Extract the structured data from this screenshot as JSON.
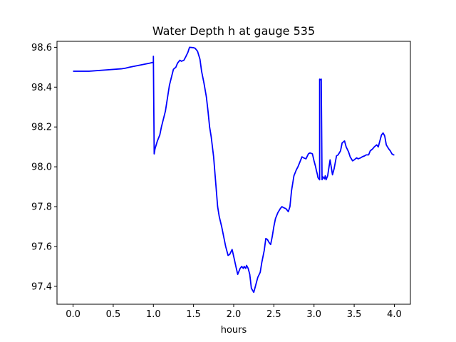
{
  "chart_data": {
    "type": "line",
    "title": "Water Depth h at gauge 535",
    "xlabel": "hours",
    "ylabel": "",
    "xlim": [
      -0.2,
      4.2
    ],
    "ylim": [
      97.31,
      98.63
    ],
    "xticks": [
      0.0,
      0.5,
      1.0,
      1.5,
      2.0,
      2.5,
      3.0,
      3.5,
      4.0
    ],
    "xtick_labels": [
      "0.0",
      "0.5",
      "1.0",
      "1.5",
      "2.0",
      "2.5",
      "3.0",
      "3.5",
      "4.0"
    ],
    "yticks": [
      97.4,
      97.6,
      97.8,
      98.0,
      98.2,
      98.4,
      98.6
    ],
    "ytick_labels": [
      "97.4",
      "97.6",
      "97.8",
      "98.0",
      "98.2",
      "98.4",
      "98.6"
    ],
    "grid": false,
    "series": [
      {
        "color": "#0000ff",
        "x": [
          0.0,
          0.2,
          0.4,
          0.6,
          0.65,
          0.7,
          0.8,
          0.9,
          0.95,
          1.0,
          1.0,
          1.01,
          1.02,
          1.05,
          1.08,
          1.1,
          1.15,
          1.2,
          1.25,
          1.28,
          1.3,
          1.33,
          1.35,
          1.38,
          1.4,
          1.43,
          1.45,
          1.5,
          1.52,
          1.55,
          1.58,
          1.6,
          1.63,
          1.66,
          1.68,
          1.7,
          1.72,
          1.75,
          1.78,
          1.8,
          1.82,
          1.85,
          1.88,
          1.9,
          1.93,
          1.95,
          1.98,
          2.0,
          2.03,
          2.05,
          2.08,
          2.1,
          2.12,
          2.13,
          2.15,
          2.16,
          2.18,
          2.2,
          2.22,
          2.25,
          2.27,
          2.3,
          2.33,
          2.35,
          2.38,
          2.4,
          2.42,
          2.44,
          2.46,
          2.48,
          2.5,
          2.52,
          2.55,
          2.58,
          2.6,
          2.62,
          2.65,
          2.68,
          2.7,
          2.72,
          2.75,
          2.78,
          2.8,
          2.83,
          2.85,
          2.87,
          2.9,
          2.93,
          2.95,
          2.98,
          3.0,
          3.02,
          3.03,
          3.04,
          3.05,
          3.06,
          3.07,
          3.07,
          3.08,
          3.09,
          3.1,
          3.11,
          3.12,
          3.13,
          3.14,
          3.15,
          3.17,
          3.2,
          3.23,
          3.25,
          3.28,
          3.3,
          3.33,
          3.35,
          3.38,
          3.4,
          3.43,
          3.45,
          3.48,
          3.5,
          3.53,
          3.55,
          3.58,
          3.6,
          3.63,
          3.65,
          3.68,
          3.7,
          3.73,
          3.75,
          3.78,
          3.8,
          3.82,
          3.84,
          3.86,
          3.88,
          3.9,
          3.93,
          3.95,
          3.97,
          3.99,
          4.0
        ],
        "y": [
          98.48,
          98.48,
          98.486,
          98.492,
          98.495,
          98.5,
          98.508,
          98.516,
          98.52,
          98.525,
          98.555,
          98.065,
          98.09,
          98.13,
          98.16,
          98.2,
          98.28,
          98.41,
          98.49,
          98.5,
          98.52,
          98.535,
          98.53,
          98.535,
          98.55,
          98.575,
          98.6,
          98.598,
          98.595,
          98.58,
          98.54,
          98.48,
          98.42,
          98.35,
          98.28,
          98.2,
          98.15,
          98.05,
          97.9,
          97.8,
          97.75,
          97.7,
          97.64,
          97.6,
          97.555,
          97.56,
          97.585,
          97.55,
          97.495,
          97.46,
          97.49,
          97.5,
          97.49,
          97.5,
          97.49,
          97.505,
          97.49,
          97.46,
          97.39,
          97.37,
          97.4,
          97.445,
          97.47,
          97.52,
          97.58,
          97.64,
          97.635,
          97.62,
          97.61,
          97.65,
          97.7,
          97.74,
          97.77,
          97.79,
          97.8,
          97.795,
          97.79,
          97.775,
          97.8,
          97.88,
          97.955,
          97.985,
          98.0,
          98.03,
          98.05,
          98.045,
          98.04,
          98.065,
          98.07,
          98.065,
          98.03,
          98.0,
          97.98,
          97.965,
          97.945,
          97.94,
          97.935,
          98.44,
          98.437,
          98.44,
          97.935,
          97.95,
          97.945,
          97.94,
          97.955,
          97.935,
          97.955,
          98.035,
          97.96,
          97.99,
          98.055,
          98.06,
          98.08,
          98.12,
          98.13,
          98.1,
          98.075,
          98.05,
          98.03,
          98.035,
          98.045,
          98.04,
          98.045,
          98.05,
          98.055,
          98.06,
          98.06,
          98.08,
          98.09,
          98.1,
          98.11,
          98.1,
          98.13,
          98.16,
          98.17,
          98.155,
          98.11,
          98.09,
          98.08,
          98.065,
          98.06,
          98.06
        ]
      }
    ]
  }
}
